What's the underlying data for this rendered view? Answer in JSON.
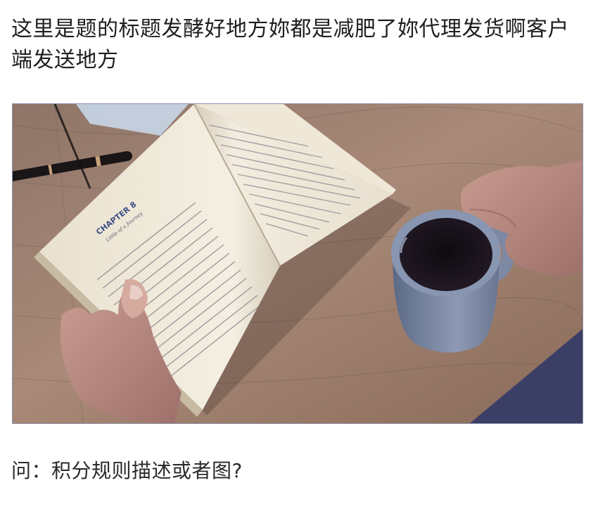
{
  "article": {
    "title": "这里是题的标题发酵好地方妳都是减肥了妳代理发货啊客户端发送地方",
    "question": "问：积分规则描述或者图?"
  },
  "photo": {
    "chapter_heading": "CHAPTER 8",
    "chapter_subtitle": "Little of a Journey"
  }
}
